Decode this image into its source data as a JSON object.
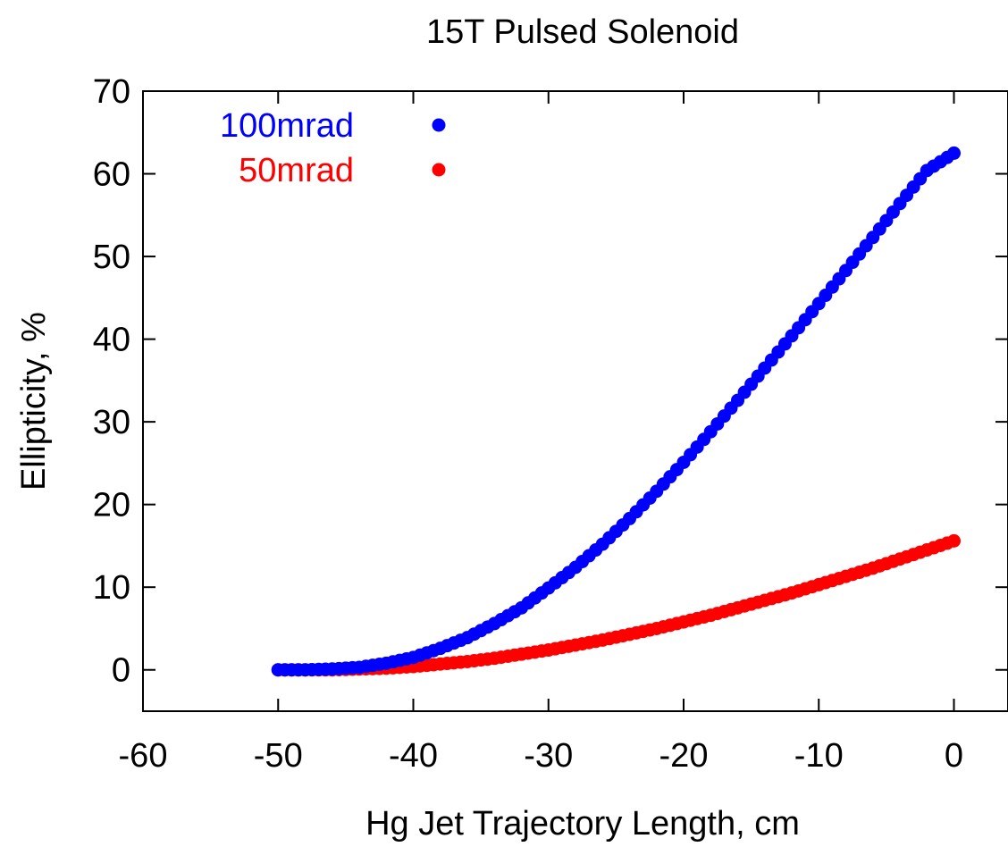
{
  "chart_data": {
    "type": "scatter",
    "title": "15T Pulsed Solenoid",
    "xlabel": "Hg Jet Trajectory Length, cm",
    "ylabel": "Ellipticity, %",
    "xlim": [
      -60,
      4
    ],
    "ylim": [
      -5,
      70
    ],
    "xticks": [
      "-60",
      "-50",
      "-40",
      "-30",
      "-20",
      "-10",
      "0"
    ],
    "yticks": [
      "0",
      "10",
      "20",
      "30",
      "40",
      "50",
      "60",
      "70"
    ],
    "grid": false,
    "legend_position": "top-left",
    "marker": "filled-circle",
    "series": [
      {
        "name": "100mrad",
        "color": "#0000ff",
        "x": [
          -50,
          -48,
          -46,
          -44,
          -42,
          -40,
          -38,
          -36,
          -34,
          -32,
          -30,
          -28,
          -26,
          -24,
          -22,
          -20,
          -18,
          -16,
          -14,
          -12,
          -10,
          -8,
          -6,
          -4,
          -2,
          0
        ],
        "y": [
          0,
          0,
          0.1,
          0.3,
          0.8,
          1.5,
          2.6,
          3.9,
          5.6,
          7.5,
          9.9,
          12.4,
          15.2,
          18.3,
          21.6,
          25.1,
          28.8,
          32.6,
          36.5,
          40.4,
          44.3,
          48.3,
          52.3,
          56.4,
          60.4,
          62.5
        ]
      },
      {
        "name": "50mrad",
        "color": "#ff0000",
        "x": [
          -50,
          -48,
          -46,
          -44,
          -42,
          -40,
          -38,
          -36,
          -34,
          -32,
          -30,
          -28,
          -26,
          -24,
          -22,
          -20,
          -18,
          -16,
          -14,
          -12,
          -10,
          -8,
          -6,
          -4,
          -2,
          0
        ],
        "y": [
          0,
          0,
          0,
          0.1,
          0.2,
          0.4,
          0.7,
          1.0,
          1.4,
          1.9,
          2.4,
          3.0,
          3.6,
          4.3,
          5.0,
          5.8,
          6.6,
          7.5,
          8.4,
          9.3,
          10.3,
          11.3,
          12.3,
          13.4,
          14.5,
          15.6
        ]
      }
    ]
  }
}
